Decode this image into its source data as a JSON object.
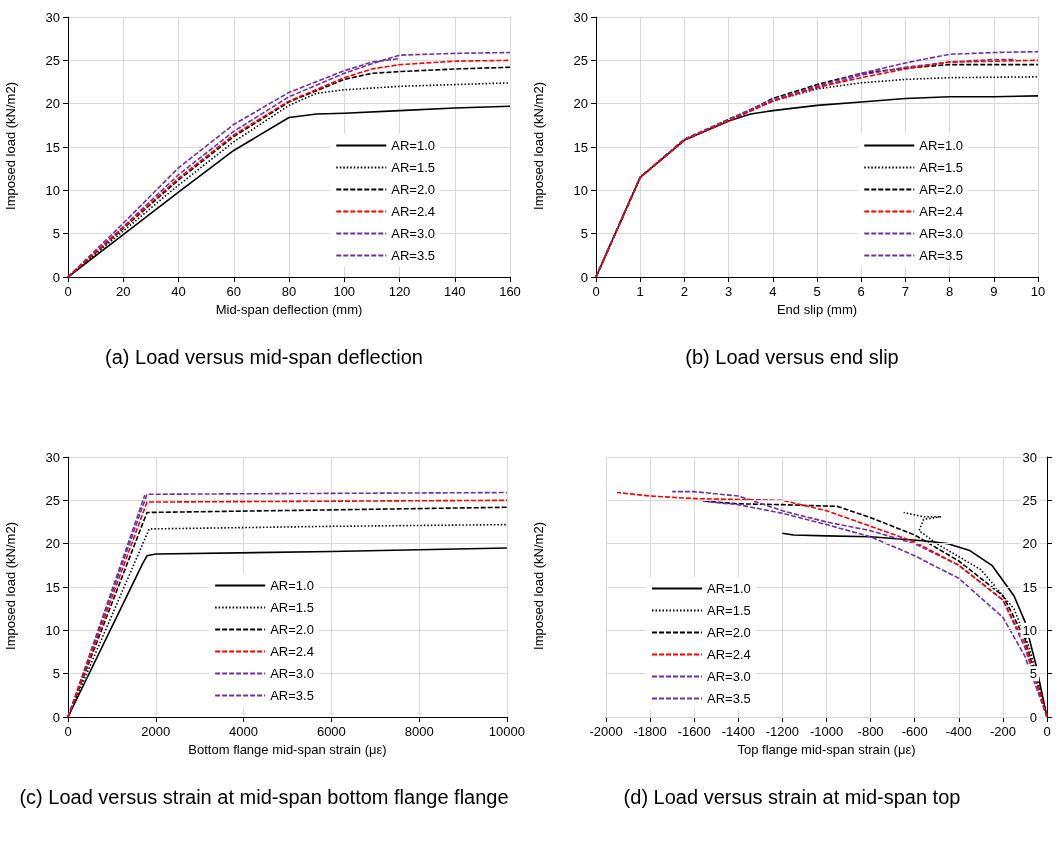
{
  "chart_data": [
    {
      "type": "line",
      "xlabel": "Mid-span deflection (mm)",
      "ylabel": "Imposed load (kN/m2)",
      "xlim": [
        0,
        160
      ],
      "xticks": [
        0,
        20,
        40,
        60,
        80,
        100,
        120,
        140,
        160
      ],
      "ylim": [
        0,
        30
      ],
      "yticks": [
        0,
        5,
        10,
        15,
        20,
        25,
        30
      ],
      "grid": true,
      "legend": "bottom right",
      "marker": "none",
      "annotations": [
        "(a) Load versus mid-span deflection"
      ],
      "series": [
        {
          "name": "AR=1.0",
          "color": "#000000",
          "line_style": "solid",
          "x": [
            0,
            20,
            40,
            60,
            80,
            90,
            100,
            120,
            140,
            160
          ],
          "values": [
            0,
            4.9,
            9.8,
            14.6,
            18.4,
            18.8,
            18.9,
            19.2,
            19.5,
            19.7
          ]
        },
        {
          "name": "AR=1.5",
          "color": "#000000",
          "line_style": "dotted",
          "x": [
            0,
            20,
            40,
            60,
            80,
            90,
            100,
            120,
            140,
            160
          ],
          "values": [
            0,
            5.3,
            10.6,
            15.6,
            19.8,
            21.2,
            21.6,
            22,
            22.2,
            22.4
          ]
        },
        {
          "name": "AR=2.0",
          "color": "#000000",
          "line_style": "dashed",
          "x": [
            0,
            20,
            40,
            60,
            80,
            100,
            110,
            120,
            140,
            160
          ],
          "values": [
            0,
            5.6,
            11.2,
            16.2,
            20.2,
            22.8,
            23.5,
            23.7,
            24,
            24.2
          ]
        },
        {
          "name": "AR=2.4",
          "color": "#ff0000",
          "line_style": "dashed",
          "x": [
            0,
            20,
            40,
            60,
            80,
            100,
            110,
            120,
            140,
            160
          ],
          "values": [
            0,
            5.7,
            11.4,
            16.4,
            20.3,
            23,
            24,
            24.5,
            24.9,
            25
          ]
        },
        {
          "name": "AR=3.0",
          "color": "#7030a0",
          "line_style": "dashed",
          "x": [
            0,
            20,
            40,
            60,
            80,
            100,
            110,
            120,
            140,
            160
          ],
          "values": [
            0,
            5.8,
            11.8,
            16.8,
            20.8,
            23.5,
            24.6,
            25.6,
            25.8,
            25.9
          ]
        },
        {
          "name": "AR=3.5",
          "color": "#7030a0",
          "line_style": "dashed",
          "x": [
            0,
            20,
            40,
            60,
            80,
            100,
            110,
            120
          ],
          "values": [
            0,
            6.2,
            12.6,
            17.6,
            21.3,
            23.8,
            24.8,
            25.2
          ]
        }
      ]
    },
    {
      "type": "line",
      "xlabel": "End slip (mm)",
      "ylabel": "Imposed load (kN/m2)",
      "xlim": [
        0,
        10
      ],
      "xticks": [
        0,
        1,
        2,
        3,
        4,
        5,
        6,
        7,
        8,
        9,
        10
      ],
      "ylim": [
        0,
        30
      ],
      "yticks": [
        0,
        5,
        10,
        15,
        20,
        25,
        30
      ],
      "grid": true,
      "legend": "bottom right",
      "marker": "none",
      "annotations": [
        "(b) Load versus end slip"
      ],
      "series": [
        {
          "name": "AR=1.0",
          "color": "#000000",
          "line_style": "solid",
          "x": [
            0,
            1,
            2,
            3,
            3.5,
            4,
            5,
            6,
            7,
            8,
            9,
            10
          ],
          "values": [
            0,
            11.5,
            15.8,
            18,
            18.8,
            19.2,
            19.8,
            20.2,
            20.6,
            20.8,
            20.8,
            20.9
          ]
        },
        {
          "name": "AR=1.5",
          "color": "#000000",
          "line_style": "dotted",
          "x": [
            0,
            1,
            2,
            3,
            4,
            5,
            6,
            7,
            8,
            10
          ],
          "values": [
            0,
            11.5,
            15.8,
            18.2,
            20.3,
            21.7,
            22.4,
            22.8,
            23,
            23.1
          ]
        },
        {
          "name": "AR=2.0",
          "color": "#000000",
          "line_style": "dashed",
          "x": [
            0,
            1,
            2,
            3,
            4,
            5,
            6,
            7,
            8,
            10
          ],
          "values": [
            0,
            11.5,
            15.8,
            18,
            20.6,
            22.2,
            23.5,
            24.1,
            24.5,
            24.5
          ]
        },
        {
          "name": "AR=2.4",
          "color": "#ff0000",
          "line_style": "dashed",
          "x": [
            0,
            1,
            2,
            3,
            4,
            5,
            6,
            7,
            8,
            9,
            10
          ],
          "values": [
            0,
            11.5,
            15.8,
            18,
            20.3,
            21.9,
            23,
            24,
            24.8,
            24.9,
            25
          ]
        },
        {
          "name": "AR=3.0",
          "color": "#7030a0",
          "line_style": "dashed",
          "x": [
            0,
            1,
            2,
            3,
            4,
            5,
            6,
            7,
            8,
            9,
            10
          ],
          "values": [
            0,
            11.5,
            15.9,
            18.2,
            20.5,
            22,
            23.5,
            24.7,
            25.7,
            25.9,
            26
          ]
        },
        {
          "name": "AR=3.5",
          "color": "#7030a0",
          "line_style": "dashed",
          "x": [
            0,
            1,
            2,
            3,
            4,
            5,
            6,
            7,
            8,
            9,
            9.5
          ],
          "values": [
            0,
            11.5,
            15.9,
            18.1,
            20.3,
            21.8,
            23.3,
            24.2,
            24.8,
            25.1,
            25.1
          ]
        }
      ]
    },
    {
      "type": "line",
      "xlabel": "Bottom flange mid-span strain (με)",
      "ylabel": "Imposed load (kN/m2)",
      "xlim": [
        0,
        10000
      ],
      "xticks": [
        0,
        2000,
        4000,
        6000,
        8000,
        10000
      ],
      "ylim": [
        0,
        30
      ],
      "yticks": [
        0,
        5,
        10,
        15,
        20,
        25,
        30
      ],
      "grid": true,
      "legend": "bottom",
      "marker": "none",
      "annotations": [
        "(c) Load versus strain at mid-span bottom flange flange"
      ],
      "series": [
        {
          "name": "AR=1.0",
          "color": "#000000",
          "line_style": "solid",
          "x": [
            0,
            1700,
            1800,
            2000,
            6000,
            10000
          ],
          "values": [
            0,
            17.7,
            18.6,
            18.8,
            19.1,
            19.5
          ]
        },
        {
          "name": "AR=1.5",
          "color": "#000000",
          "line_style": "dotted",
          "x": [
            0,
            1850,
            6000,
            10000
          ],
          "values": [
            0,
            21.7,
            22,
            22.2
          ]
        },
        {
          "name": "AR=2.0",
          "color": "#000000",
          "line_style": "dashed",
          "x": [
            0,
            1800,
            6000,
            10000
          ],
          "values": [
            0,
            23.6,
            23.9,
            24.2
          ]
        },
        {
          "name": "AR=2.4",
          "color": "#ff0000",
          "line_style": "dashed",
          "x": [
            0,
            1800,
            10000
          ],
          "values": [
            0,
            24.8,
            25
          ]
        },
        {
          "name": "AR=3.0",
          "color": "#7030a0",
          "line_style": "dashed",
          "x": [
            0,
            1800,
            10000
          ],
          "values": [
            0,
            25.7,
            25.9
          ]
        },
        {
          "name": "AR=3.5",
          "color": "#7030a0",
          "line_style": "dashed",
          "x": [
            0,
            1750
          ],
          "values": [
            0,
            25.6
          ]
        }
      ]
    },
    {
      "type": "line",
      "xlabel": "Top flange mid-span strain (με)",
      "ylabel": "Imposed load (kN/m2)",
      "xlim": [
        -2000,
        0
      ],
      "xticks": [
        -2000,
        -1800,
        -1600,
        -1400,
        -1200,
        -1000,
        -800,
        -600,
        -400,
        -200,
        0
      ],
      "ylim": [
        0,
        30
      ],
      "yticks": [
        0,
        5,
        10,
        15,
        20,
        25,
        30
      ],
      "grid": true,
      "legend": "left",
      "marker": "none",
      "annotations": [
        "(d) Load versus strain at mid-span top"
      ],
      "series": [
        {
          "name": "AR=1.0",
          "color": "#000000",
          "line_style": "solid",
          "x": [
            0,
            -50,
            -100,
            -150,
            -250,
            -350,
            -450,
            -550,
            -800,
            -1000,
            -1150,
            -1200
          ],
          "values": [
            0,
            6,
            11,
            14,
            17.5,
            19.2,
            20,
            20.3,
            20.8,
            20.9,
            21,
            21.2
          ]
        },
        {
          "name": "AR=1.5",
          "color": "#000000",
          "line_style": "dotted",
          "x": [
            0,
            -80,
            -150,
            -300,
            -500,
            -580,
            -560,
            -480,
            -560,
            -650
          ],
          "values": [
            0,
            8,
            12.5,
            17,
            20,
            21.5,
            22.8,
            23.1,
            23.1,
            23.6
          ]
        },
        {
          "name": "AR=2.0",
          "color": "#000000",
          "line_style": "dashed",
          "x": [
            0,
            -100,
            -200,
            -400,
            -600,
            -800,
            -950,
            -1200,
            -1400,
            -1550
          ],
          "values": [
            0,
            9,
            14,
            18,
            21,
            23,
            24.3,
            24.5,
            24.6,
            24.9
          ]
        },
        {
          "name": "AR=2.4",
          "color": "#ff0000",
          "line_style": "dashed",
          "x": [
            0,
            -100,
            -200,
            -400,
            -600,
            -800,
            -1000,
            -1200,
            -1400,
            -1600,
            -1800,
            -1950
          ],
          "values": [
            0,
            8.5,
            13.5,
            17.5,
            20.2,
            22,
            23.8,
            25,
            25.1,
            25.2,
            25.5,
            25.9
          ]
        },
        {
          "name": "AR=3.0",
          "color": "#7030a0",
          "line_style": "dashed",
          "x": [
            0,
            -100,
            -200,
            -400,
            -600,
            -800,
            -1000,
            -1200,
            -1400,
            -1600,
            -1700
          ],
          "values": [
            0,
            8,
            13.5,
            17.5,
            20,
            21.5,
            22.5,
            23.8,
            25.5,
            26,
            26
          ]
        },
        {
          "name": "AR=3.5",
          "color": "#7030a0",
          "line_style": "dashed",
          "x": [
            0,
            -100,
            -200,
            -400,
            -600,
            -800,
            -1000,
            -1200,
            -1400,
            -1560
          ],
          "values": [
            0,
            7,
            11.5,
            16,
            18.6,
            20.8,
            22.2,
            23.5,
            24.5,
            24.9
          ]
        }
      ]
    }
  ]
}
